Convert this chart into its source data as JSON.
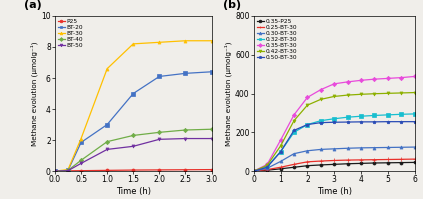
{
  "a": {
    "panel_label": "(a)",
    "xlabel": "Time (h)",
    "ylabel": "Methane evolution (μmolg⁻¹)",
    "xlim": [
      0,
      3.0
    ],
    "ylim": [
      0,
      10
    ],
    "yticks": [
      0,
      2,
      4,
      6,
      8,
      10
    ],
    "xticks": [
      0.0,
      0.5,
      1.0,
      1.5,
      2.0,
      2.5,
      3.0
    ],
    "series": [
      {
        "label": "P25",
        "color": "#e8302a",
        "marker": "o",
        "x": [
          0.0,
          0.25,
          0.5,
          1.0,
          1.5,
          2.0,
          2.5,
          3.0
        ],
        "y": [
          0.0,
          0.02,
          0.03,
          0.05,
          0.07,
          0.08,
          0.09,
          0.1
        ]
      },
      {
        "label": "BT-20",
        "color": "#4472c4",
        "marker": "s",
        "x": [
          0.0,
          0.25,
          0.5,
          1.0,
          1.5,
          2.0,
          2.5,
          3.0
        ],
        "y": [
          0.0,
          0.05,
          1.85,
          3.0,
          5.0,
          6.1,
          6.3,
          6.4
        ]
      },
      {
        "label": "BT-30",
        "color": "#ffc000",
        "marker": "^",
        "x": [
          0.0,
          0.25,
          0.5,
          1.0,
          1.5,
          2.0,
          2.5,
          3.0
        ],
        "y": [
          0.0,
          0.1,
          2.1,
          6.6,
          8.2,
          8.3,
          8.4,
          8.4
        ]
      },
      {
        "label": "BT-40",
        "color": "#70ad47",
        "marker": "D",
        "x": [
          0.0,
          0.25,
          0.5,
          1.0,
          1.5,
          2.0,
          2.5,
          3.0
        ],
        "y": [
          0.0,
          0.05,
          0.7,
          1.9,
          2.3,
          2.5,
          2.65,
          2.7
        ]
      },
      {
        "label": "BT-50",
        "color": "#7030a0",
        "marker": "v",
        "x": [
          0.0,
          0.25,
          0.5,
          1.0,
          1.5,
          2.0,
          2.5,
          3.0
        ],
        "y": [
          0.0,
          0.03,
          0.5,
          1.4,
          1.6,
          2.05,
          2.1,
          2.1
        ]
      }
    ]
  },
  "b": {
    "panel_label": "(b)",
    "xlabel": "Time (h)",
    "ylabel": "Methane evolution (μmolg⁻¹)",
    "xlim": [
      0,
      6
    ],
    "ylim": [
      0,
      800
    ],
    "yticks": [
      0,
      200,
      400,
      600,
      800
    ],
    "xticks": [
      0,
      1,
      2,
      3,
      4,
      5,
      6
    ],
    "series": [
      {
        "label": "0.35-P25",
        "color": "#1a1a1a",
        "marker": "o",
        "x": [
          0,
          0.5,
          1.0,
          1.5,
          2.0,
          2.5,
          3.0,
          3.5,
          4.0,
          4.5,
          5.0,
          5.5,
          6.0
        ],
        "y": [
          0,
          5,
          12,
          20,
          28,
          32,
          35,
          38,
          40,
          42,
          43,
          44,
          45
        ]
      },
      {
        "label": "0.25-BT-30",
        "color": "#e8302a",
        "marker": "+",
        "x": [
          0,
          0.5,
          1.0,
          1.5,
          2.0,
          2.5,
          3.0,
          3.5,
          4.0,
          4.5,
          5.0,
          5.5,
          6.0
        ],
        "y": [
          0,
          8,
          20,
          35,
          48,
          52,
          55,
          57,
          58,
          59,
          60,
          61,
          62
        ]
      },
      {
        "label": "0.30-BT-30",
        "color": "#4472c4",
        "marker": "^",
        "x": [
          0,
          0.5,
          1.0,
          1.5,
          2.0,
          2.5,
          3.0,
          3.5,
          4.0,
          4.5,
          5.0,
          5.5,
          6.0
        ],
        "y": [
          0,
          15,
          50,
          90,
          105,
          112,
          115,
          118,
          120,
          121,
          122,
          123,
          124
        ]
      },
      {
        "label": "0.32-BT-30",
        "color": "#17becf",
        "marker": "s",
        "x": [
          0,
          0.5,
          1.0,
          1.5,
          2.0,
          2.5,
          3.0,
          3.5,
          4.0,
          4.5,
          5.0,
          5.5,
          6.0
        ],
        "y": [
          0,
          25,
          100,
          200,
          240,
          260,
          270,
          278,
          283,
          287,
          290,
          293,
          295
        ]
      },
      {
        "label": "0.35-BT-30",
        "color": "#e84bdb",
        "marker": "D",
        "x": [
          0,
          0.5,
          1.0,
          1.5,
          2.0,
          2.5,
          3.0,
          3.5,
          4.0,
          4.5,
          5.0,
          5.5,
          6.0
        ],
        "y": [
          0,
          35,
          160,
          290,
          380,
          420,
          450,
          460,
          468,
          474,
          478,
          482,
          488
        ]
      },
      {
        "label": "0.42-BT-30",
        "color": "#8db000",
        "marker": "v",
        "x": [
          0,
          0.5,
          1.0,
          1.5,
          2.0,
          2.5,
          3.0,
          3.5,
          4.0,
          4.5,
          5.0,
          5.5,
          6.0
        ],
        "y": [
          0,
          30,
          130,
          260,
          340,
          370,
          385,
          392,
          396,
          399,
          401,
          403,
          405
        ]
      },
      {
        "label": "0.50-BT-30",
        "color": "#2a4bb5",
        "marker": "p",
        "x": [
          0,
          0.5,
          1.0,
          1.5,
          2.0,
          2.5,
          3.0,
          3.5,
          4.0,
          4.5,
          5.0,
          5.5,
          6.0
        ],
        "y": [
          0,
          20,
          100,
          210,
          240,
          250,
          252,
          253,
          254,
          254,
          255,
          255,
          255
        ]
      }
    ]
  },
  "background_color": "#f0eeea",
  "figsize": [
    4.23,
    1.99
  ],
  "dpi": 100
}
